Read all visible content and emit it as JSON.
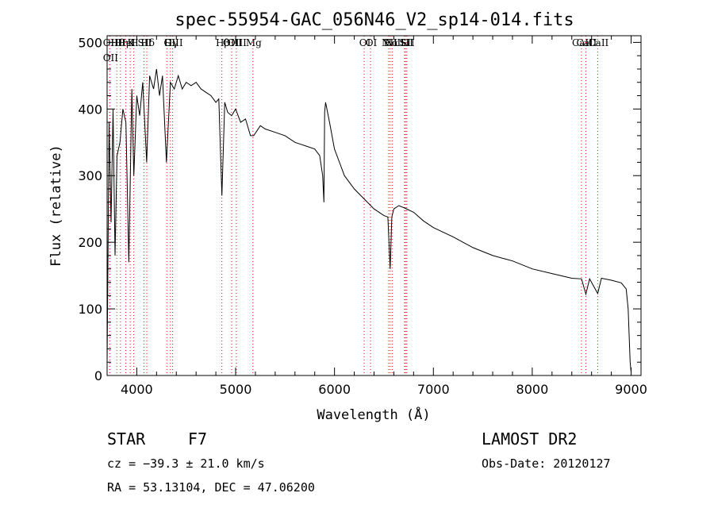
{
  "chart_data": {
    "type": "line",
    "title": "spec-55954-GAC_056N46_V2_sp14-014.fits",
    "xlabel": "Wavelength (Å)",
    "ylabel": "Flux (relative)",
    "xlim": [
      3700,
      9100
    ],
    "ylim": [
      0,
      510
    ],
    "xticks": [
      4000,
      5000,
      6000,
      7000,
      8000,
      9000
    ],
    "yticks": [
      0,
      100,
      200,
      300,
      400,
      500
    ],
    "grid": false,
    "line_color": "#000000",
    "marker_color": "#ff0000",
    "series": [
      {
        "x": [
          3700,
          3720,
          3740,
          3760,
          3780,
          3800,
          3830,
          3860,
          3890,
          3920,
          3950,
          3970,
          4000,
          4030,
          4060,
          4100,
          4130,
          4170,
          4200,
          4230,
          4260,
          4300,
          4340,
          4380,
          4420,
          4460,
          4500,
          4550,
          4600,
          4650,
          4700,
          4750,
          4800,
          4830,
          4861,
          4890,
          4920,
          4960,
          5000,
          5050,
          5100,
          5150,
          5183,
          5250,
          5300,
          5400,
          5500,
          5600,
          5700,
          5800,
          5850,
          5880,
          5893,
          5900,
          5910,
          5950,
          6000,
          6050,
          6100,
          6200,
          6300,
          6400,
          6500,
          6540,
          6563,
          6580,
          6600,
          6650,
          6700,
          6800,
          6900,
          7000,
          7200,
          7400,
          7600,
          7800,
          8000,
          8200,
          8400,
          8498,
          8542,
          8580,
          8662,
          8700,
          8800,
          8900,
          8950,
          8970,
          8990,
          9000
        ],
        "y": [
          20,
          380,
          230,
          400,
          180,
          330,
          350,
          400,
          380,
          170,
          430,
          300,
          420,
          390,
          440,
          320,
          450,
          430,
          460,
          420,
          450,
          320,
          440,
          430,
          450,
          430,
          440,
          435,
          440,
          430,
          425,
          420,
          410,
          415,
          270,
          410,
          395,
          390,
          400,
          380,
          385,
          360,
          360,
          375,
          370,
          365,
          360,
          350,
          345,
          340,
          330,
          300,
          260,
          395,
          410,
          380,
          340,
          320,
          300,
          280,
          265,
          250,
          240,
          238,
          160,
          238,
          250,
          255,
          252,
          245,
          232,
          222,
          208,
          192,
          180,
          172,
          160,
          153,
          146,
          145,
          122,
          145,
          123,
          146,
          143,
          139,
          130,
          100,
          20,
          5
        ]
      }
    ],
    "spectral_lines": [
      {
        "label": "OII",
        "wavelength": 3727
      },
      {
        "label": "OII",
        "wavelength": 3727
      },
      {
        "label": "Hθ",
        "wavelength": 3798
      },
      {
        "label": "Hη",
        "wavelength": 3835
      },
      {
        "label": "K",
        "wavelength": 3934
      },
      {
        "label": "HeI",
        "wavelength": 3889
      },
      {
        "label": "SII",
        "wavelength": 4072
      },
      {
        "label": "H",
        "wavelength": 3969
      },
      {
        "label": "Hδ",
        "wavelength": 4102
      },
      {
        "label": "OIII",
        "wavelength": 4363
      },
      {
        "label": "Hγ",
        "wavelength": 4340
      },
      {
        "label": "G",
        "wavelength": 4304
      },
      {
        "label": "Hβ",
        "wavelength": 4861
      },
      {
        "label": "OIII",
        "wavelength": 4959
      },
      {
        "label": "OIII",
        "wavelength": 5007
      },
      {
        "label": "Mg",
        "wavelength": 5175
      },
      {
        "label": "OI",
        "wavelength": 6300
      },
      {
        "label": "OI",
        "wavelength": 6364
      },
      {
        "label": "NII",
        "wavelength": 6583
      },
      {
        "label": "Hα",
        "wavelength": 6563
      },
      {
        "label": "NII",
        "wavelength": 6548
      },
      {
        "label": "SII",
        "wavelength": 6717
      },
      {
        "label": "SII",
        "wavelength": 6731
      },
      {
        "label": "Li",
        "wavelength": 6708
      },
      {
        "label": "CaII",
        "wavelength": 8662
      },
      {
        "label": "CaII",
        "wavelength": 8542
      },
      {
        "label": "CaII",
        "wavelength": 8498
      }
    ]
  },
  "info": {
    "class": "STAR",
    "subclass": "F7",
    "survey": "LAMOST DR2",
    "cz": "cz = −39.3 ± 21.0 km/s",
    "obsdate": "Obs-Date: 20120127",
    "radec": "RA =  53.13104, DEC =  47.06200"
  }
}
